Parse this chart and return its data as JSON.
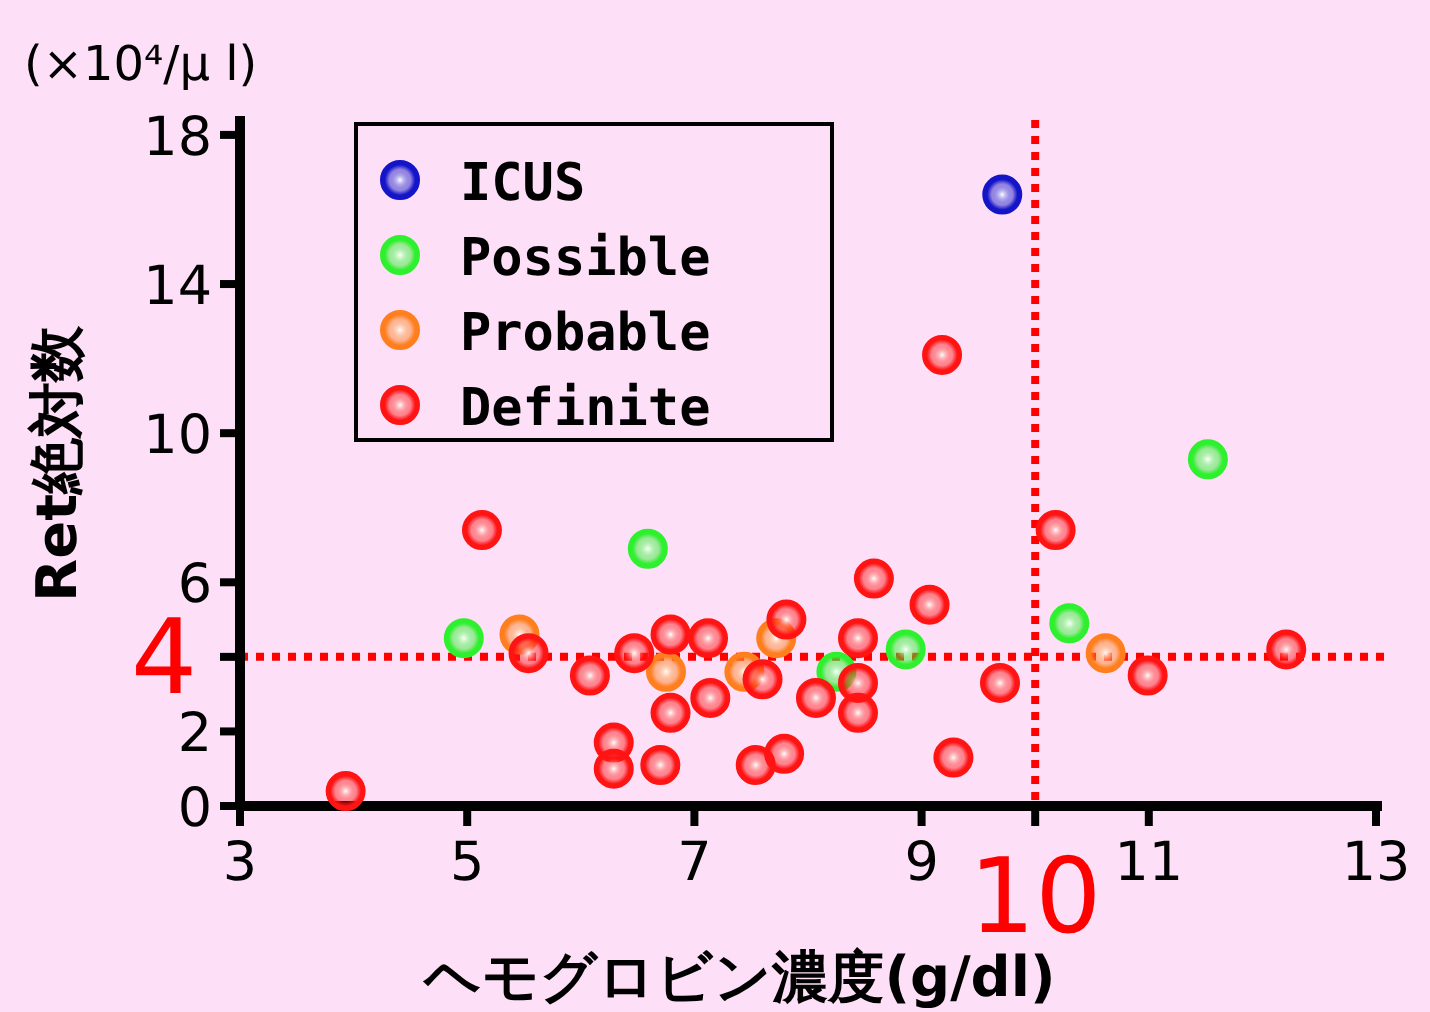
{
  "chart_data": {
    "type": "scatter",
    "xlabel": "ヘモグロビン濃度(g/dl)",
    "ylabel": "Ret絶対数",
    "annotations": [
      "(×10⁴/μ l)"
    ],
    "xlim": [
      3,
      13
    ],
    "xticks": [
      3,
      5,
      7,
      9,
      {
        "value": 10,
        "label": null
      },
      11,
      13
    ],
    "ylim": [
      0,
      18.4
    ],
    "yticks": [
      0,
      2,
      {
        "value": 4,
        "label": null
      },
      6,
      10,
      14,
      18
    ],
    "marker": "circle",
    "legend": "top left",
    "series": [
      {
        "name": "ICUS",
        "color": "#1414c8",
        "x": [
          9.71
        ],
        "values": [
          16.4
        ]
      },
      {
        "name": "Possible",
        "color": "#2ef02e",
        "x": [
          4.97,
          6.59,
          8.25,
          8.86,
          10.3,
          11.52
        ],
        "values": [
          4.5,
          6.9,
          3.6,
          4.2,
          4.9,
          9.3
        ]
      },
      {
        "name": "Probable",
        "color": "#ff7f1e",
        "x": [
          5.46,
          6.75,
          7.44,
          7.72,
          10.62
        ],
        "values": [
          4.6,
          3.6,
          3.6,
          4.5,
          4.1
        ]
      },
      {
        "name": "Definite",
        "color": "#ff1414",
        "x": [
          3.93,
          5.13,
          5.54,
          6.08,
          6.29,
          6.29,
          6.47,
          6.7,
          6.79,
          6.79,
          7.12,
          7.14,
          7.54,
          7.6,
          7.79,
          7.81,
          8.07,
          8.44,
          8.44,
          8.44,
          8.58,
          9.07,
          9.18,
          9.28,
          9.69,
          10.18,
          10.99,
          12.21
        ],
        "values": [
          0.4,
          7.4,
          4.1,
          3.5,
          1.7,
          1.0,
          4.1,
          1.1,
          4.6,
          2.5,
          4.5,
          2.9,
          1.1,
          3.4,
          1.4,
          5.0,
          2.9,
          4.5,
          3.3,
          2.5,
          6.1,
          5.4,
          12.1,
          1.3,
          3.3,
          7.4,
          3.5,
          4.2
        ]
      }
    ],
    "ref_lines": [
      {
        "axis": "x",
        "value": 10,
        "label": "10",
        "color": "#ff0000",
        "line_style": "dotted"
      },
      {
        "axis": "y",
        "value": 4,
        "label": "4",
        "color": "#ff0000",
        "line_style": "dotted"
      }
    ]
  }
}
